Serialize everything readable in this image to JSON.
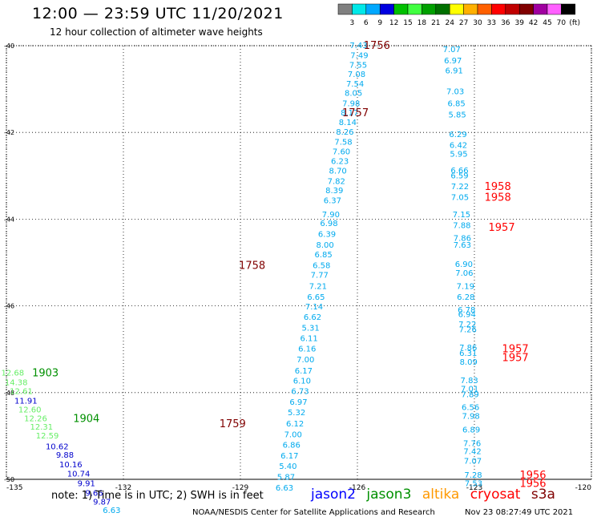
{
  "title": "12:00 — 23:59 UTC 11/20/2021",
  "subtitle": "12 hour collection of altimeter wave heights",
  "note": "note: 1) Time is in UTC; 2) SWH is in feet",
  "credit": "NOAA/NESDIS Center for Satellite Applications and Research",
  "timestamp": "Nov 23 08:27:49 UTC 2021",
  "colorbar": {
    "unit": "(ft)",
    "ticks": [
      "3",
      "6",
      "9",
      "12",
      "15",
      "18",
      "21",
      "24",
      "27",
      "30",
      "33",
      "36",
      "39",
      "42",
      "45",
      "70"
    ],
    "colors": [
      "#808080",
      "#00e8e8",
      "#00a8ff",
      "#0000e0",
      "#00c000",
      "#40ff40",
      "#00a000",
      "#007000",
      "#ffff00",
      "#ffb000",
      "#ff6000",
      "#ff0000",
      "#c00000",
      "#800000",
      "#a000a0",
      "#ff60ff",
      "#000000"
    ]
  },
  "satellites": [
    {
      "name": "jason2",
      "color": "#0000ff"
    },
    {
      "name": "jason3",
      "color": "#009000"
    },
    {
      "name": "altika",
      "color": "#ff9900"
    },
    {
      "name": "cryosat",
      "color": "#ff0000"
    },
    {
      "name": "s3a",
      "color": "#800000"
    }
  ],
  "map": {
    "lat_ticks": [
      "-40",
      "-42",
      "-44",
      "-46",
      "-48",
      "-50"
    ],
    "lon_ticks": [
      "-135",
      "-132",
      "-129",
      "-126",
      "-123",
      "-120"
    ],
    "lat_range": [
      -50,
      -40
    ],
    "lon_range": [
      -135,
      -120
    ],
    "grid": "dotted"
  },
  "observations": [
    {
      "v": "7.43",
      "lon": -125.97,
      "lat": -40.0,
      "c": "#00aaee"
    },
    {
      "v": "7.49",
      "lon": -125.95,
      "lat": -40.23,
      "c": "#00aaee"
    },
    {
      "v": "7.55",
      "lon": -125.98,
      "lat": -40.45,
      "c": "#00aaee"
    },
    {
      "v": "7.08",
      "lon": -126.02,
      "lat": -40.67,
      "c": "#00aaee"
    },
    {
      "v": "7.54",
      "lon": -126.06,
      "lat": -40.89,
      "c": "#00aaee"
    },
    {
      "v": "8.05",
      "lon": -126.1,
      "lat": -41.1,
      "c": "#00aaee"
    },
    {
      "v": "7.98",
      "lon": -126.16,
      "lat": -41.34,
      "c": "#00aaee"
    },
    {
      "v": "8.17",
      "lon": -126.2,
      "lat": -41.55,
      "c": "#00aaee"
    },
    {
      "v": "8.14",
      "lon": -126.25,
      "lat": -41.77,
      "c": "#00aaee"
    },
    {
      "v": "8.26",
      "lon": -126.32,
      "lat": -42.0,
      "c": "#00aaee"
    },
    {
      "v": "7.58",
      "lon": -126.36,
      "lat": -42.23,
      "c": "#00aaee"
    },
    {
      "v": "7.60",
      "lon": -126.41,
      "lat": -42.45,
      "c": "#00aaee"
    },
    {
      "v": "6.23",
      "lon": -126.45,
      "lat": -42.67,
      "c": "#00aaee"
    },
    {
      "v": "8.70",
      "lon": -126.5,
      "lat": -42.89,
      "c": "#00aaee"
    },
    {
      "v": "7.82",
      "lon": -126.54,
      "lat": -43.13,
      "c": "#00aaee"
    },
    {
      "v": "8.39",
      "lon": -126.59,
      "lat": -43.35,
      "c": "#00aaee"
    },
    {
      "v": "6.37",
      "lon": -126.64,
      "lat": -43.58,
      "c": "#00aaee"
    },
    {
      "v": "7.90",
      "lon": -126.68,
      "lat": -43.9,
      "c": "#00aaee"
    },
    {
      "v": "6.98",
      "lon": -126.73,
      "lat": -44.1,
      "c": "#00aaee"
    },
    {
      "v": "6.39",
      "lon": -126.78,
      "lat": -44.35,
      "c": "#00aaee"
    },
    {
      "v": "8.00",
      "lon": -126.83,
      "lat": -44.6,
      "c": "#00aaee"
    },
    {
      "v": "6.85",
      "lon": -126.87,
      "lat": -44.82,
      "c": "#00aaee"
    },
    {
      "v": "6.58",
      "lon": -126.92,
      "lat": -45.07,
      "c": "#00aaee"
    },
    {
      "v": "7.77",
      "lon": -126.97,
      "lat": -45.3,
      "c": "#00aaee"
    },
    {
      "v": "7.21",
      "lon": -127.01,
      "lat": -45.55,
      "c": "#00aaee"
    },
    {
      "v": "6.65",
      "lon": -127.06,
      "lat": -45.8,
      "c": "#00aaee"
    },
    {
      "v": "7.14",
      "lon": -127.11,
      "lat": -46.03,
      "c": "#00aaee"
    },
    {
      "v": "6.62",
      "lon": -127.15,
      "lat": -46.27,
      "c": "#00aaee"
    },
    {
      "v": "5.31",
      "lon": -127.2,
      "lat": -46.52,
      "c": "#00aaee"
    },
    {
      "v": "6.11",
      "lon": -127.24,
      "lat": -46.76,
      "c": "#00aaee"
    },
    {
      "v": "6.16",
      "lon": -127.29,
      "lat": -47.0,
      "c": "#00aaee"
    },
    {
      "v": "7.00",
      "lon": -127.33,
      "lat": -47.25,
      "c": "#00aaee"
    },
    {
      "v": "6.17",
      "lon": -127.38,
      "lat": -47.5,
      "c": "#00aaee"
    },
    {
      "v": "6.10",
      "lon": -127.42,
      "lat": -47.74,
      "c": "#00aaee"
    },
    {
      "v": "6.73",
      "lon": -127.47,
      "lat": -47.98,
      "c": "#00aaee"
    },
    {
      "v": "6.97",
      "lon": -127.51,
      "lat": -48.23,
      "c": "#00aaee"
    },
    {
      "v": "5.32",
      "lon": -127.56,
      "lat": -48.47,
      "c": "#00aaee"
    },
    {
      "v": "6.12",
      "lon": -127.6,
      "lat": -48.72,
      "c": "#00aaee"
    },
    {
      "v": "7.00",
      "lon": -127.65,
      "lat": -48.97,
      "c": "#00aaee"
    },
    {
      "v": "6.86",
      "lon": -127.69,
      "lat": -49.21,
      "c": "#00aaee"
    },
    {
      "v": "6.17",
      "lon": -127.74,
      "lat": -49.46,
      "c": "#00aaee"
    },
    {
      "v": "5.40",
      "lon": -127.78,
      "lat": -49.7,
      "c": "#00aaee"
    },
    {
      "v": "5.87",
      "lon": -127.83,
      "lat": -49.95,
      "c": "#00aaee"
    },
    {
      "v": "6.63",
      "lon": -127.87,
      "lat": -50.2,
      "c": "#00aaee"
    },
    {
      "v": "7.07",
      "lon": -123.58,
      "lat": -40.09,
      "c": "#00aaee"
    },
    {
      "v": "6.97",
      "lon": -123.55,
      "lat": -40.35,
      "c": "#00aaee"
    },
    {
      "v": "6.91",
      "lon": -123.52,
      "lat": -40.58,
      "c": "#00aaee"
    },
    {
      "v": "7.03",
      "lon": -123.49,
      "lat": -41.06,
      "c": "#00aaee"
    },
    {
      "v": "6.85",
      "lon": -123.46,
      "lat": -41.34,
      "c": "#00aaee"
    },
    {
      "v": "5.85",
      "lon": -123.44,
      "lat": -41.6,
      "c": "#00aaee"
    },
    {
      "v": "6.29",
      "lon": -123.42,
      "lat": -42.05,
      "c": "#00aaee"
    },
    {
      "v": "6.42",
      "lon": -123.41,
      "lat": -42.3,
      "c": "#00aaee"
    },
    {
      "v": "5.95",
      "lon": -123.4,
      "lat": -42.5,
      "c": "#00aaee"
    },
    {
      "v": "6.66",
      "lon": -123.38,
      "lat": -42.88,
      "c": "#00aaee"
    },
    {
      "v": "6.59",
      "lon": -123.38,
      "lat": -43.0,
      "c": "#00aaee"
    },
    {
      "v": "7.22",
      "lon": -123.37,
      "lat": -43.25,
      "c": "#00aaee"
    },
    {
      "v": "7.05",
      "lon": -123.37,
      "lat": -43.5,
      "c": "#00aaee"
    },
    {
      "v": "7.15",
      "lon": -123.33,
      "lat": -43.9,
      "c": "#00aaee"
    },
    {
      "v": "7.88",
      "lon": -123.32,
      "lat": -44.15,
      "c": "#00aaee"
    },
    {
      "v": "7.86",
      "lon": -123.31,
      "lat": -44.45,
      "c": "#00aaee"
    },
    {
      "v": "7.63",
      "lon": -123.31,
      "lat": -44.6,
      "c": "#00aaee"
    },
    {
      "v": "6.90",
      "lon": -123.27,
      "lat": -45.05,
      "c": "#00aaee"
    },
    {
      "v": "7.06",
      "lon": -123.26,
      "lat": -45.25,
      "c": "#00aaee"
    },
    {
      "v": "7.19",
      "lon": -123.23,
      "lat": -45.55,
      "c": "#00aaee"
    },
    {
      "v": "6.28",
      "lon": -123.22,
      "lat": -45.8,
      "c": "#00aaee"
    },
    {
      "v": "6.78",
      "lon": -123.2,
      "lat": -46.1,
      "c": "#00aaee"
    },
    {
      "v": "6.94",
      "lon": -123.19,
      "lat": -46.2,
      "c": "#00aaee"
    },
    {
      "v": "7.22",
      "lon": -123.18,
      "lat": -46.43,
      "c": "#00aaee"
    },
    {
      "v": "7.26",
      "lon": -123.17,
      "lat": -46.55,
      "c": "#00aaee"
    },
    {
      "v": "7.86",
      "lon": -123.16,
      "lat": -46.97,
      "c": "#00aaee"
    },
    {
      "v": "6.31",
      "lon": -123.16,
      "lat": -47.1,
      "c": "#00aaee"
    },
    {
      "v": "8.09",
      "lon": -123.15,
      "lat": -47.3,
      "c": "#00aaee"
    },
    {
      "v": "7.83",
      "lon": -123.13,
      "lat": -47.73,
      "c": "#00aaee"
    },
    {
      "v": "7.01",
      "lon": -123.12,
      "lat": -47.92,
      "c": "#00aaee"
    },
    {
      "v": "7.89",
      "lon": -123.11,
      "lat": -48.05,
      "c": "#00aaee"
    },
    {
      "v": "6.56",
      "lon": -123.1,
      "lat": -48.35,
      "c": "#00aaee"
    },
    {
      "v": "7.98",
      "lon": -123.09,
      "lat": -48.55,
      "c": "#00aaee"
    },
    {
      "v": "6.89",
      "lon": -123.08,
      "lat": -48.86,
      "c": "#00aaee"
    },
    {
      "v": "7.76",
      "lon": -123.06,
      "lat": -49.18,
      "c": "#00aaee"
    },
    {
      "v": "7.42",
      "lon": -123.05,
      "lat": -49.36,
      "c": "#00aaee"
    },
    {
      "v": "7.07",
      "lon": -123.04,
      "lat": -49.58,
      "c": "#00aaee"
    },
    {
      "v": "7.28",
      "lon": -123.03,
      "lat": -49.91,
      "c": "#00aaee"
    },
    {
      "v": "7.53",
      "lon": -123.02,
      "lat": -50.1,
      "c": "#00aaee"
    },
    {
      "v": "12.68",
      "lon": -134.84,
      "lat": -47.55,
      "c": "#66ee66"
    },
    {
      "v": "14.38",
      "lon": -134.75,
      "lat": -47.77,
      "c": "#66ee66"
    },
    {
      "v": "12.61",
      "lon": -134.62,
      "lat": -47.98,
      "c": "#66ee66"
    },
    {
      "v": "11.91",
      "lon": -134.5,
      "lat": -48.2,
      "c": "#0000cc"
    },
    {
      "v": "12.60",
      "lon": -134.4,
      "lat": -48.4,
      "c": "#66ee66"
    },
    {
      "v": "12.26",
      "lon": -134.25,
      "lat": -48.6,
      "c": "#66ee66"
    },
    {
      "v": "12.31",
      "lon": -134.1,
      "lat": -48.8,
      "c": "#66ee66"
    },
    {
      "v": "12.59",
      "lon": -133.95,
      "lat": -49.0,
      "c": "#66ee66"
    },
    {
      "v": "10.62",
      "lon": -133.7,
      "lat": -49.25,
      "c": "#0000cc"
    },
    {
      "v": "9.88",
      "lon": -133.5,
      "lat": -49.45,
      "c": "#0000cc"
    },
    {
      "v": "10.16",
      "lon": -133.35,
      "lat": -49.67,
      "c": "#0000cc"
    },
    {
      "v": "10.74",
      "lon": -133.15,
      "lat": -49.88,
      "c": "#0000cc"
    },
    {
      "v": "9.91",
      "lon": -132.95,
      "lat": -50.1,
      "c": "#0000cc"
    },
    {
      "v": "9.66",
      "lon": -132.75,
      "lat": -50.32,
      "c": "#0000cc"
    },
    {
      "v": "9.87",
      "lon": -132.55,
      "lat": -50.53,
      "c": "#0000cc"
    },
    {
      "v": "6.63",
      "lon": -132.3,
      "lat": -50.72,
      "c": "#00aaee"
    }
  ],
  "time_labels": [
    {
      "t": "1756",
      "lon": -125.5,
      "lat": -40.0,
      "c": "#800000"
    },
    {
      "t": "1757",
      "lon": -126.05,
      "lat": -41.55,
      "c": "#800000"
    },
    {
      "t": "1758",
      "lon": -128.7,
      "lat": -45.07,
      "c": "#800000"
    },
    {
      "t": "1759",
      "lon": -129.2,
      "lat": -48.72,
      "c": "#800000"
    },
    {
      "t": "1958",
      "lon": -122.4,
      "lat": -43.25,
      "c": "#ff0000"
    },
    {
      "t": "1958",
      "lon": -122.4,
      "lat": -43.5,
      "c": "#ff0000"
    },
    {
      "t": "1957",
      "lon": -122.3,
      "lat": -44.2,
      "c": "#ff0000"
    },
    {
      "t": "1957",
      "lon": -121.95,
      "lat": -47.0,
      "c": "#ff0000"
    },
    {
      "t": "1957",
      "lon": -121.95,
      "lat": -47.2,
      "c": "#ff0000"
    },
    {
      "t": "1956",
      "lon": -121.5,
      "lat": -49.91,
      "c": "#ff0000"
    },
    {
      "t": "1956",
      "lon": -121.5,
      "lat": -50.1,
      "c": "#ff0000"
    },
    {
      "t": "1903",
      "lon": -134.0,
      "lat": -47.55,
      "c": "#009000"
    },
    {
      "t": "1904",
      "lon": -132.95,
      "lat": -48.6,
      "c": "#009000"
    }
  ]
}
